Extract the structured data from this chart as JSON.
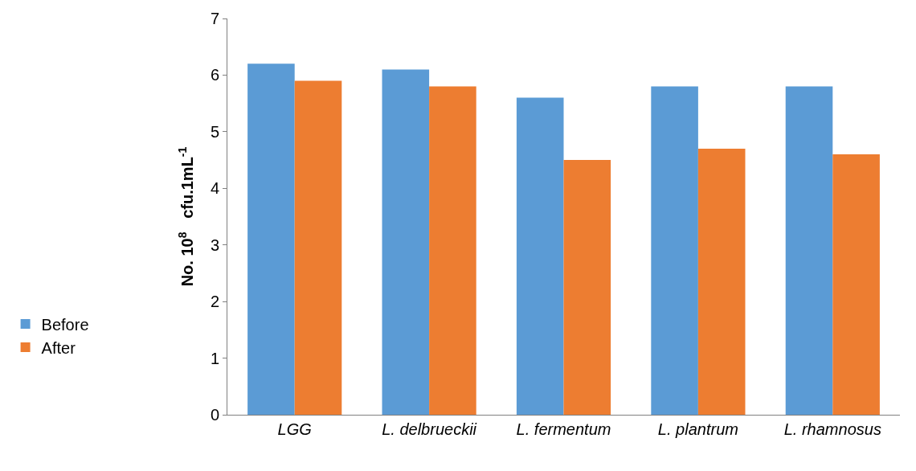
{
  "chart_data": {
    "type": "bar",
    "ylabel": "No. 10$^{8}$   cfu.1mL$^{-1}$",
    "categories": [
      "LGG",
      "L. delbrueckii",
      "L. fermentum",
      "L. plantrum",
      "L. rhamnosus"
    ],
    "series": [
      {
        "name": "Before",
        "color": "#5b9bd5",
        "values": [
          6.2,
          6.1,
          5.6,
          5.8,
          5.8
        ]
      },
      {
        "name": "After",
        "color": "#ed7d31",
        "values": [
          5.9,
          5.8,
          4.5,
          4.7,
          4.6
        ]
      }
    ],
    "ylim": [
      0,
      7
    ],
    "yticks": [
      0,
      1,
      2,
      3,
      4,
      5,
      6,
      7
    ],
    "legend": "left"
  }
}
